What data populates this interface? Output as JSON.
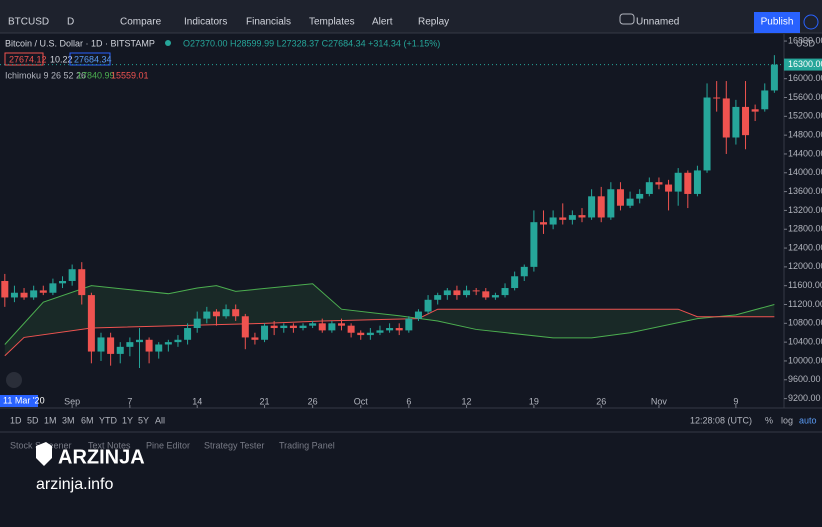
{
  "toolbar": {
    "symbol": "BTCUSD",
    "interval": "D",
    "buttons": [
      "Compare",
      "Indicators",
      "Financials",
      "Templates",
      "Alert",
      "Replay"
    ],
    "layout_name": "Unnamed",
    "publish": "Publish"
  },
  "legend": {
    "title": "Bitcoin / U.S. Dollar · 1D · BITSTAMP",
    "ohlc": "O27370.00 H28599.99 L27328.37 C27684.34 +314.34 (+1.15%)",
    "bid": "27674.12",
    "spread": "10.22",
    "ask": "27684.34",
    "indicator": "Ichimoku 9 26 52 26",
    "ind_value_1": "17840.99",
    "ind_value_2": "15559.01"
  },
  "bottom_bar": {
    "ranges": [
      "1D",
      "5D",
      "1M",
      "3M",
      "6M",
      "YTD",
      "1Y",
      "5Y",
      "All"
    ],
    "time": "12:28:08 (UTC)",
    "percent": "%",
    "log": "log",
    "auto": "auto"
  },
  "panels": [
    "Stock Screener",
    "Text Notes",
    "Pine Editor",
    "Strategy Tester",
    "Trading Panel"
  ],
  "watermark": {
    "brand": "ARZINJA",
    "site": "arzinja.info"
  },
  "date_badge": "11 Mar '20",
  "chart_data": {
    "type": "candlestick",
    "y_axis_label": "USD",
    "current_price": {
      "value": 16300,
      "label": "16300.00"
    },
    "up_color": "#26a69a",
    "down_color": "#ef5350",
    "xlim": [
      -0.5,
      81
    ],
    "xticks": [
      {
        "value": 7,
        "label": "Sep"
      },
      {
        "value": 13,
        "label": "7"
      },
      {
        "value": 20,
        "label": "14"
      },
      {
        "value": 27,
        "label": "21"
      },
      {
        "value": 32,
        "label": "26"
      },
      {
        "value": 37,
        "label": "Oct"
      },
      {
        "value": 42,
        "label": "6"
      },
      {
        "value": 48,
        "label": "12"
      },
      {
        "value": 55,
        "label": "19"
      },
      {
        "value": 62,
        "label": "26"
      },
      {
        "value": 68,
        "label": "Nov"
      },
      {
        "value": 76,
        "label": "9"
      }
    ],
    "ylim": [
      9000,
      16950
    ],
    "yticks": [
      {
        "value": 9200,
        "label": "9200.00"
      },
      {
        "value": 9600,
        "label": "9600.00"
      },
      {
        "value": 10000,
        "label": "10000.00"
      },
      {
        "value": 10400,
        "label": "10400.00"
      },
      {
        "value": 10800,
        "label": "10800.00"
      },
      {
        "value": 11200,
        "label": "11200.00"
      },
      {
        "value": 11600,
        "label": "11600.00"
      },
      {
        "value": 12000,
        "label": "12000.00"
      },
      {
        "value": 12400,
        "label": "12400.00"
      },
      {
        "value": 12800,
        "label": "12800.00"
      },
      {
        "value": 13200,
        "label": "13200.00"
      },
      {
        "value": 13600,
        "label": "13600.00"
      },
      {
        "value": 14000,
        "label": "14000.00"
      },
      {
        "value": 14400,
        "label": "14400.00"
      },
      {
        "value": 14800,
        "label": "14800.00"
      },
      {
        "value": 15200,
        "label": "15200.00"
      },
      {
        "value": 15600,
        "label": "15600.00"
      },
      {
        "value": 16000,
        "label": "16000.00"
      },
      {
        "value": 16800,
        "label": "16800.00"
      }
    ],
    "candles": [
      {
        "open": 11700,
        "high": 11850,
        "low": 11150,
        "close": 11350
      },
      {
        "open": 11350,
        "high": 11600,
        "low": 11250,
        "close": 11450
      },
      {
        "open": 11450,
        "high": 11550,
        "low": 11300,
        "close": 11350
      },
      {
        "open": 11350,
        "high": 11600,
        "low": 11300,
        "close": 11500
      },
      {
        "open": 11500,
        "high": 11600,
        "low": 11400,
        "close": 11450
      },
      {
        "open": 11450,
        "high": 11750,
        "low": 11400,
        "close": 11650
      },
      {
        "open": 11650,
        "high": 11800,
        "low": 11550,
        "close": 11700
      },
      {
        "open": 11700,
        "high": 12050,
        "low": 11600,
        "close": 11950
      },
      {
        "open": 11950,
        "high": 12100,
        "low": 11200,
        "close": 11400
      },
      {
        "open": 11400,
        "high": 11450,
        "low": 9950,
        "close": 10200
      },
      {
        "open": 10200,
        "high": 10600,
        "low": 10000,
        "close": 10500
      },
      {
        "open": 10500,
        "high": 10600,
        "low": 9900,
        "close": 10150
      },
      {
        "open": 10150,
        "high": 10400,
        "low": 9950,
        "close": 10300
      },
      {
        "open": 10300,
        "high": 10500,
        "low": 10100,
        "close": 10400
      },
      {
        "open": 10400,
        "high": 10700,
        "low": 9850,
        "close": 10450
      },
      {
        "open": 10450,
        "high": 10500,
        "low": 9950,
        "close": 10200
      },
      {
        "open": 10200,
        "high": 10400,
        "low": 10050,
        "close": 10350
      },
      {
        "open": 10350,
        "high": 10450,
        "low": 10200,
        "close": 10400
      },
      {
        "open": 10400,
        "high": 10550,
        "low": 10300,
        "close": 10450
      },
      {
        "open": 10450,
        "high": 10800,
        "low": 10350,
        "close": 10700
      },
      {
        "open": 10700,
        "high": 11050,
        "low": 10600,
        "close": 10900
      },
      {
        "open": 10900,
        "high": 11150,
        "low": 10800,
        "close": 11050
      },
      {
        "open": 11050,
        "high": 11100,
        "low": 10750,
        "close": 10950
      },
      {
        "open": 10950,
        "high": 11200,
        "low": 10900,
        "close": 11100
      },
      {
        "open": 11100,
        "high": 11200,
        "low": 10850,
        "close": 10950
      },
      {
        "open": 10950,
        "high": 11000,
        "low": 10250,
        "close": 10500
      },
      {
        "open": 10500,
        "high": 10600,
        "low": 10350,
        "close": 10450
      },
      {
        "open": 10450,
        "high": 10800,
        "low": 10400,
        "close": 10750
      },
      {
        "open": 10750,
        "high": 10850,
        "low": 10550,
        "close": 10700
      },
      {
        "open": 10700,
        "high": 10800,
        "low": 10600,
        "close": 10750
      },
      {
        "open": 10750,
        "high": 10800,
        "low": 10600,
        "close": 10700
      },
      {
        "open": 10700,
        "high": 10800,
        "low": 10650,
        "close": 10750
      },
      {
        "open": 10750,
        "high": 10850,
        "low": 10700,
        "close": 10800
      },
      {
        "open": 10800,
        "high": 10900,
        "low": 10600,
        "close": 10650
      },
      {
        "open": 10650,
        "high": 10850,
        "low": 10600,
        "close": 10800
      },
      {
        "open": 10800,
        "high": 10900,
        "low": 10650,
        "close": 10750
      },
      {
        "open": 10750,
        "high": 10800,
        "low": 10500,
        "close": 10600
      },
      {
        "open": 10600,
        "high": 10650,
        "low": 10450,
        "close": 10550
      },
      {
        "open": 10550,
        "high": 10700,
        "low": 10450,
        "close": 10600
      },
      {
        "open": 10600,
        "high": 10750,
        "low": 10550,
        "close": 10650
      },
      {
        "open": 10650,
        "high": 10800,
        "low": 10600,
        "close": 10700
      },
      {
        "open": 10700,
        "high": 10800,
        "low": 10550,
        "close": 10650
      },
      {
        "open": 10650,
        "high": 10950,
        "low": 10600,
        "close": 10900
      },
      {
        "open": 10900,
        "high": 11100,
        "low": 10850,
        "close": 11050
      },
      {
        "open": 11050,
        "high": 11400,
        "low": 11000,
        "close": 11300
      },
      {
        "open": 11300,
        "high": 11450,
        "low": 11200,
        "close": 11400
      },
      {
        "open": 11400,
        "high": 11550,
        "low": 11300,
        "close": 11500
      },
      {
        "open": 11500,
        "high": 11600,
        "low": 11300,
        "close": 11400
      },
      {
        "open": 11400,
        "high": 11600,
        "low": 11350,
        "close": 11500
      },
      {
        "open": 11500,
        "high": 11550,
        "low": 11400,
        "close": 11480
      },
      {
        "open": 11480,
        "high": 11550,
        "low": 11300,
        "close": 11350
      },
      {
        "open": 11350,
        "high": 11450,
        "low": 11300,
        "close": 11400
      },
      {
        "open": 11400,
        "high": 11650,
        "low": 11350,
        "close": 11550
      },
      {
        "open": 11550,
        "high": 11900,
        "low": 11500,
        "close": 11800
      },
      {
        "open": 11800,
        "high": 12050,
        "low": 11700,
        "close": 12000
      },
      {
        "open": 12000,
        "high": 13200,
        "low": 11900,
        "close": 12950
      },
      {
        "open": 12950,
        "high": 13200,
        "low": 12700,
        "close": 12900
      },
      {
        "open": 12900,
        "high": 13200,
        "low": 12800,
        "close": 13050
      },
      {
        "open": 13050,
        "high": 13350,
        "low": 12900,
        "close": 13000
      },
      {
        "open": 13000,
        "high": 13200,
        "low": 12900,
        "close": 13100
      },
      {
        "open": 13100,
        "high": 13250,
        "low": 12950,
        "close": 13050
      },
      {
        "open": 13050,
        "high": 13650,
        "low": 13000,
        "close": 13500
      },
      {
        "open": 13500,
        "high": 13700,
        "low": 12950,
        "close": 13050
      },
      {
        "open": 13050,
        "high": 13800,
        "low": 13000,
        "close": 13650
      },
      {
        "open": 13650,
        "high": 13800,
        "low": 13200,
        "close": 13300
      },
      {
        "open": 13300,
        "high": 13600,
        "low": 13250,
        "close": 13450
      },
      {
        "open": 13450,
        "high": 13650,
        "low": 13350,
        "close": 13550
      },
      {
        "open": 13550,
        "high": 13900,
        "low": 13500,
        "close": 13800
      },
      {
        "open": 13800,
        "high": 13900,
        "low": 13650,
        "close": 13750
      },
      {
        "open": 13750,
        "high": 13850,
        "low": 13200,
        "close": 13600
      },
      {
        "open": 13600,
        "high": 14100,
        "low": 13300,
        "close": 14000
      },
      {
        "open": 14000,
        "high": 14050,
        "low": 13250,
        "close": 13550
      },
      {
        "open": 13550,
        "high": 14150,
        "low": 13500,
        "close": 14050
      },
      {
        "open": 14050,
        "high": 15900,
        "low": 14000,
        "close": 15600
      },
      {
        "open": 15600,
        "high": 15950,
        "low": 15300,
        "close": 15580
      },
      {
        "open": 15580,
        "high": 15950,
        "low": 14400,
        "close": 14750
      },
      {
        "open": 14750,
        "high": 15550,
        "low": 14600,
        "close": 15400
      },
      {
        "open": 15400,
        "high": 15950,
        "low": 14500,
        "close": 14800
      },
      {
        "open": 15350,
        "high": 15450,
        "low": 15100,
        "close": 15300
      },
      {
        "open": 15350,
        "high": 15900,
        "low": 15300,
        "close": 15750
      },
      {
        "open": 15750,
        "high": 16500,
        "low": 15700,
        "close": 16300
      }
    ],
    "ichimoku": [
      {
        "color": "#4caf50",
        "x": [
          0,
          4,
          9,
          17,
          20,
          22,
          24,
          32,
          35,
          41,
          45,
          49,
          57,
          61,
          65,
          72,
          76,
          80
        ],
        "values": [
          10350,
          11250,
          11600,
          11430,
          11550,
          11600,
          11480,
          11640,
          11100,
          10960,
          10850,
          10670,
          10490,
          10490,
          10600,
          10900,
          10980,
          11200
        ]
      },
      {
        "color": "#ef5350",
        "x": [
          0,
          2,
          9,
          27,
          33,
          43,
          45,
          70,
          72,
          80
        ],
        "values": [
          10110,
          10500,
          10700,
          10800,
          10850,
          10900,
          11100,
          11100,
          10940,
          10940
        ]
      }
    ]
  }
}
